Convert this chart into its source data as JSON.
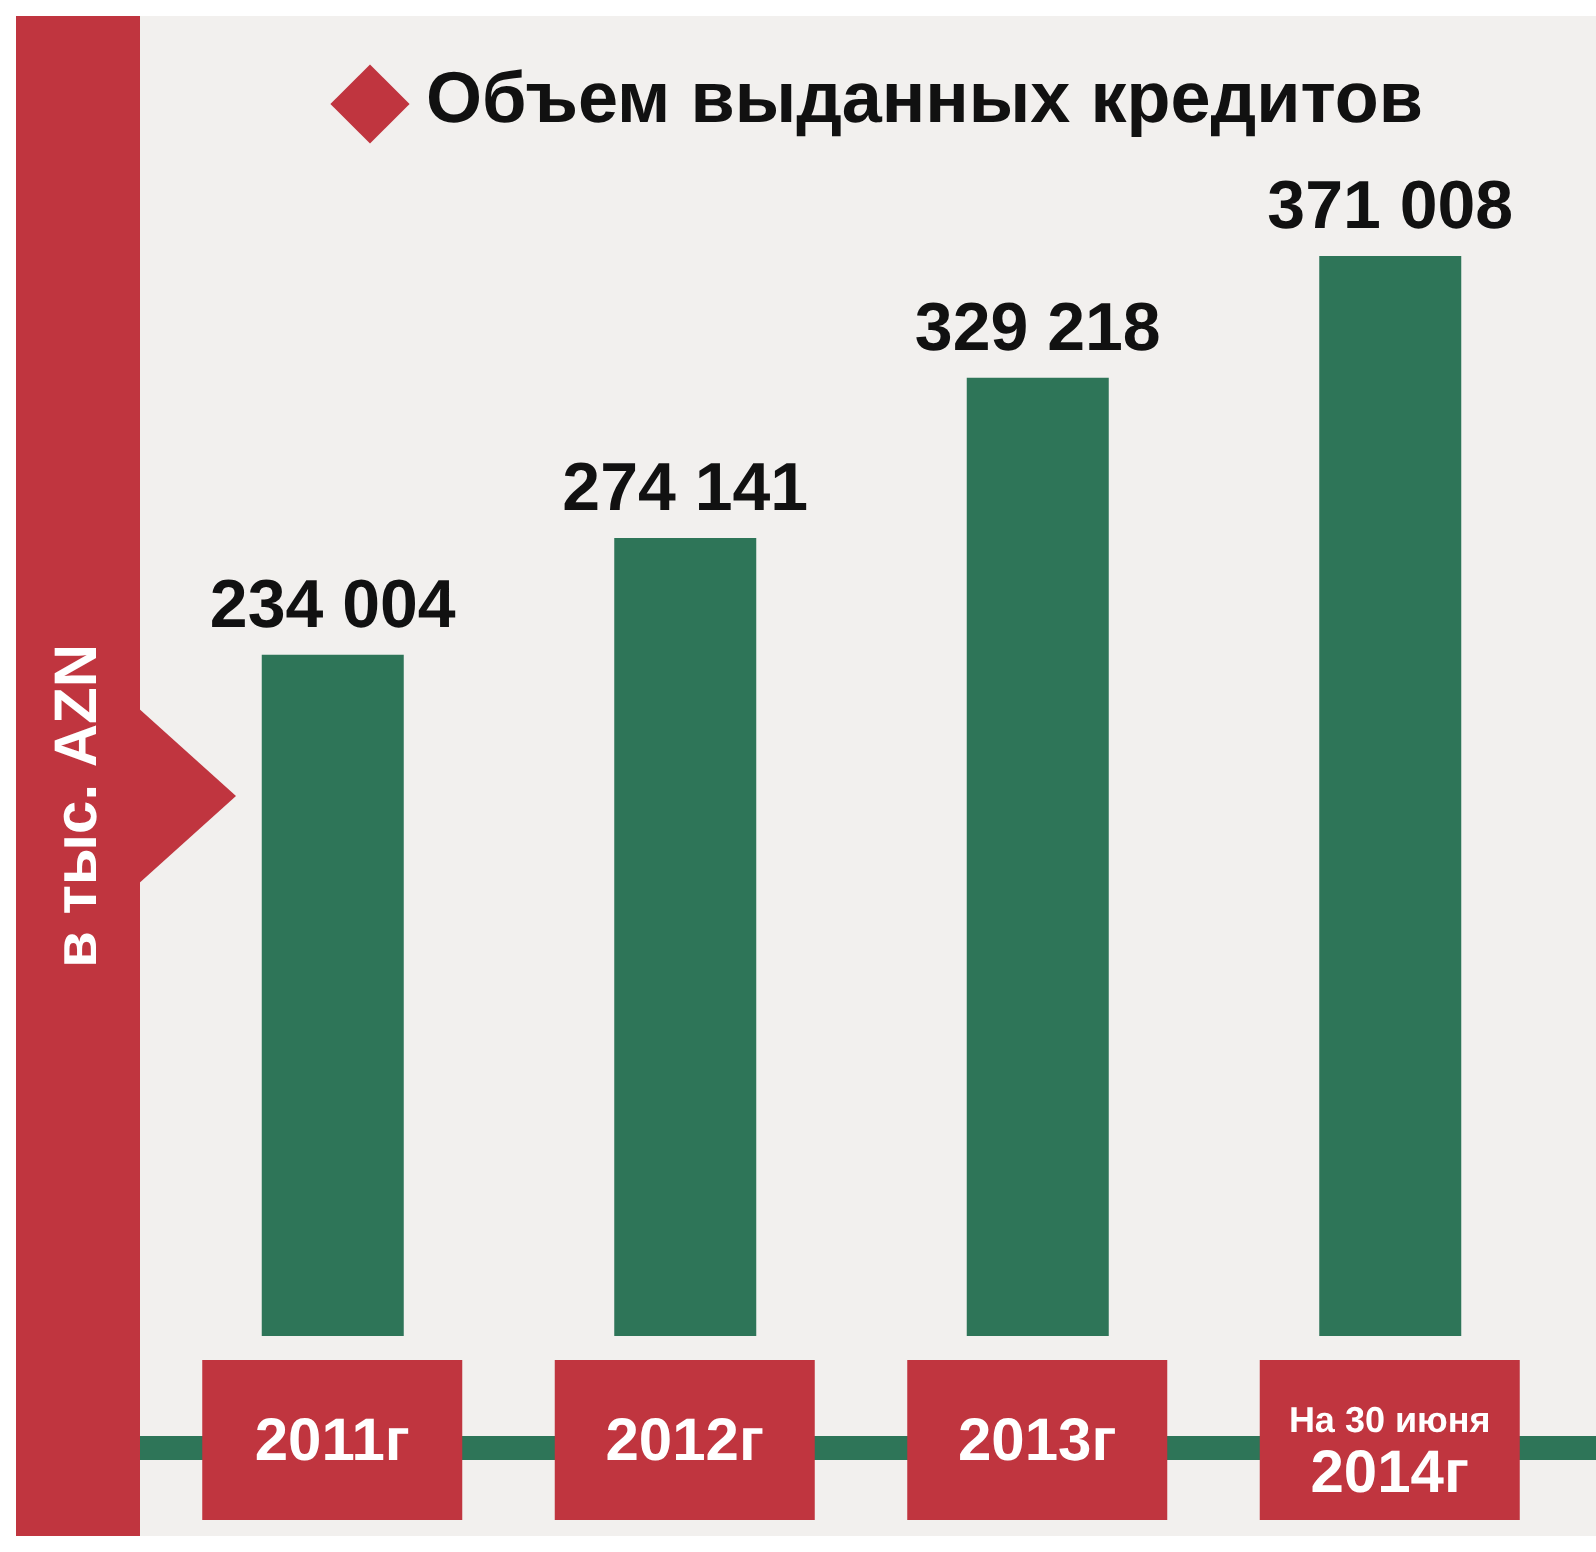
{
  "chart_data": {
    "type": "bar",
    "title": "Объем выданных кредитов",
    "ylabel": "в тыс. AZN",
    "categories": [
      "2011г",
      "2012г",
      "2013г",
      "На 30 июня 2014г"
    ],
    "values": [
      234004,
      274141,
      329218,
      371008
    ],
    "value_labels": [
      "234 004",
      "274 141",
      "329 218",
      "371 008"
    ],
    "color": "#2e7558"
  }
}
